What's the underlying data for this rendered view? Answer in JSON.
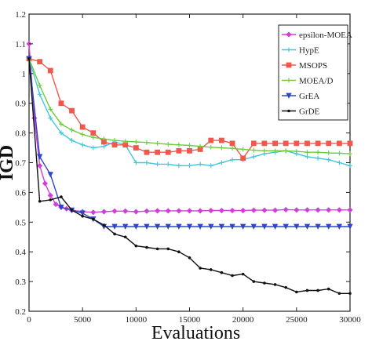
{
  "chart_data": {
    "type": "line",
    "xlabel": "Evaluations",
    "ylabel": "IGD",
    "xlim": [
      0,
      30000
    ],
    "ylim": [
      0.2,
      1.2
    ],
    "xticks": [
      0,
      5000,
      10000,
      15000,
      20000,
      25000,
      30000
    ],
    "yticks": [
      0.2,
      0.3,
      0.4,
      0.5,
      0.6,
      0.7,
      0.8,
      0.9,
      1.0,
      1.1,
      1.2
    ],
    "xtick_labels": [
      "0",
      "5000",
      "10000",
      "15000",
      "20000",
      "25000",
      "30000"
    ],
    "ytick_labels": [
      "0.2",
      "0.3",
      "0.4",
      "0.5",
      "0.6",
      "0.7",
      "0.8",
      "0.9",
      "1",
      "1.1",
      "1.2"
    ],
    "grid": false,
    "legend_position": "top-right",
    "series": [
      {
        "name": "epsilon-MOEA",
        "color": "#d23fd6",
        "marker": "diamond",
        "x": [
          0,
          500,
          1000,
          1500,
          2000,
          2500,
          3000,
          3500,
          4000,
          5000,
          6000,
          7000,
          8000,
          9000,
          10000,
          11000,
          12000,
          13000,
          14000,
          15000,
          16000,
          17000,
          18000,
          19000,
          20000,
          21000,
          22000,
          23000,
          24000,
          25000,
          26000,
          27000,
          28000,
          29000,
          30000
        ],
        "y": [
          1.1,
          0.85,
          0.69,
          0.63,
          0.59,
          0.56,
          0.55,
          0.545,
          0.54,
          0.535,
          0.533,
          0.535,
          0.537,
          0.537,
          0.535,
          0.537,
          0.538,
          0.538,
          0.538,
          0.538,
          0.538,
          0.539,
          0.539,
          0.539,
          0.539,
          0.54,
          0.54,
          0.54,
          0.542,
          0.541,
          0.541,
          0.541,
          0.541,
          0.541,
          0.541
        ]
      },
      {
        "name": "HypE",
        "color": "#3fc7dc",
        "marker": "plus",
        "x": [
          0,
          1000,
          2000,
          3000,
          4000,
          5000,
          6000,
          7000,
          8000,
          9000,
          10000,
          11000,
          12000,
          13000,
          14000,
          15000,
          16000,
          17000,
          18000,
          19000,
          20000,
          21000,
          22000,
          23000,
          24000,
          25000,
          26000,
          27000,
          28000,
          29000,
          30000
        ],
        "y": [
          1.05,
          0.93,
          0.85,
          0.8,
          0.775,
          0.76,
          0.75,
          0.755,
          0.77,
          0.76,
          0.7,
          0.7,
          0.695,
          0.695,
          0.69,
          0.69,
          0.695,
          0.69,
          0.7,
          0.71,
          0.71,
          0.72,
          0.73,
          0.735,
          0.74,
          0.73,
          0.72,
          0.715,
          0.71,
          0.7,
          0.69
        ]
      },
      {
        "name": "MSOPS",
        "color": "#f0584c",
        "marker": "square",
        "x": [
          0,
          1000,
          2000,
          3000,
          4000,
          5000,
          6000,
          7000,
          8000,
          9000,
          10000,
          11000,
          12000,
          13000,
          14000,
          15000,
          16000,
          17000,
          18000,
          19000,
          20000,
          21000,
          22000,
          23000,
          24000,
          25000,
          26000,
          27000,
          28000,
          29000,
          30000
        ],
        "y": [
          1.05,
          1.04,
          1.01,
          0.9,
          0.875,
          0.82,
          0.8,
          0.77,
          0.76,
          0.76,
          0.75,
          0.735,
          0.735,
          0.735,
          0.74,
          0.74,
          0.745,
          0.775,
          0.775,
          0.765,
          0.715,
          0.765,
          0.765,
          0.765,
          0.765,
          0.765,
          0.765,
          0.765,
          0.765,
          0.765,
          0.765
        ]
      },
      {
        "name": "MOEA/D",
        "color": "#6dcb3c",
        "marker": "plus",
        "x": [
          0,
          1000,
          2000,
          3000,
          4000,
          5000,
          6000,
          7000,
          8000,
          9000,
          10000,
          11000,
          12000,
          13000,
          14000,
          15000,
          16000,
          17000,
          18000,
          19000,
          20000,
          21000,
          22000,
          23000,
          24000,
          25000,
          26000,
          27000,
          28000,
          29000,
          30000
        ],
        "y": [
          1.05,
          0.96,
          0.88,
          0.83,
          0.81,
          0.795,
          0.785,
          0.78,
          0.775,
          0.772,
          0.77,
          0.768,
          0.765,
          0.762,
          0.76,
          0.758,
          0.755,
          0.752,
          0.75,
          0.748,
          0.745,
          0.742,
          0.74,
          0.74,
          0.74,
          0.738,
          0.735,
          0.735,
          0.733,
          0.732,
          0.73
        ]
      },
      {
        "name": "GrEA",
        "color": "#2f45c9",
        "marker": "triangle",
        "x": [
          0,
          1000,
          2000,
          3000,
          4000,
          5000,
          6000,
          7000,
          8000,
          9000,
          10000,
          11000,
          12000,
          13000,
          14000,
          15000,
          16000,
          17000,
          18000,
          19000,
          20000,
          21000,
          22000,
          23000,
          24000,
          25000,
          26000,
          27000,
          28000,
          29000,
          30000
        ],
        "y": [
          1.05,
          0.72,
          0.66,
          0.55,
          0.54,
          0.53,
          0.51,
          0.485,
          0.485,
          0.485,
          0.485,
          0.485,
          0.485,
          0.485,
          0.485,
          0.485,
          0.485,
          0.485,
          0.485,
          0.485,
          0.485,
          0.485,
          0.485,
          0.485,
          0.485,
          0.485,
          0.485,
          0.485,
          0.485,
          0.485,
          0.485
        ]
      },
      {
        "name": "GrDE",
        "color": "#111111",
        "marker": "dot",
        "x": [
          0,
          1000,
          2000,
          3000,
          4000,
          5000,
          6000,
          7000,
          8000,
          9000,
          10000,
          11000,
          12000,
          13000,
          14000,
          15000,
          16000,
          17000,
          18000,
          19000,
          20000,
          21000,
          22000,
          23000,
          24000,
          25000,
          26000,
          27000,
          28000,
          29000,
          30000
        ],
        "y": [
          1.05,
          0.57,
          0.575,
          0.585,
          0.54,
          0.52,
          0.51,
          0.49,
          0.46,
          0.45,
          0.42,
          0.415,
          0.41,
          0.41,
          0.4,
          0.38,
          0.345,
          0.34,
          0.33,
          0.32,
          0.325,
          0.3,
          0.295,
          0.29,
          0.28,
          0.265,
          0.27,
          0.27,
          0.275,
          0.26,
          0.26
        ]
      }
    ]
  }
}
